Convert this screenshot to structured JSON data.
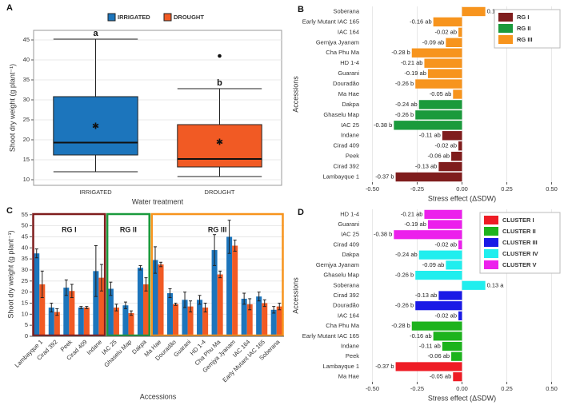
{
  "chart_data": [
    {
      "type": "box",
      "panel": "A",
      "xlabel": "Water treatment",
      "ylabel": "Shoot dry weight (g plant⁻¹)",
      "categories": [
        "IRRIGATED",
        "DROUGHT"
      ],
      "legend": "top",
      "grid": true,
      "ylim": [
        8.6,
        47.4
      ],
      "yticks": [
        10,
        15,
        20,
        25,
        30,
        35,
        40,
        45
      ],
      "series": [
        {
          "name": "IRRIGATED",
          "color": "#1c75bc",
          "min": 12,
          "q1": 16.2,
          "median": 19.3,
          "q3": 30.8,
          "max": 45.2,
          "mean": 23.5,
          "outliers": [],
          "letter": "a"
        },
        {
          "name": "DROUGHT",
          "color": "#f15a24",
          "min": 10.8,
          "q1": 13.2,
          "median": 15.2,
          "q3": 23.8,
          "max": 32.8,
          "mean": 19.5,
          "outliers": [
            41
          ],
          "letter": "b"
        }
      ]
    },
    {
      "type": "hbar",
      "panel": "B",
      "xlabel": "Stress effect (ΔSDW)",
      "ylabel": "Accessions",
      "legend": "top-right",
      "grid": true,
      "categories": [
        "Soberana",
        "Early Mutant IAC 165",
        "IAC 164",
        "Gemjya Jyanam",
        "Cha Phu Ma",
        "HD 1-4",
        "Guarani",
        "Douradão",
        "Ma  Hae",
        "Dakpa",
        "Ghaselu Map",
        "IAC 25",
        "Indane",
        "Cirad 409",
        "Peek",
        "Cirad 392",
        "Lambayque 1"
      ],
      "xlim": [
        -0.56,
        0.56
      ],
      "xticks": [
        {
          "value": -0.5,
          "label": "-0.50"
        },
        -0.25,
        {
          "value": 0,
          "label": "0.00"
        },
        0.25,
        {
          "value": 0.5,
          "label": "0.50"
        }
      ],
      "series": [
        {
          "name": "RG I",
          "color": "#7f1d1d",
          "values": [
            null,
            null,
            null,
            null,
            null,
            null,
            null,
            null,
            null,
            null,
            null,
            null,
            -0.11,
            -0.02,
            -0.06,
            -0.13,
            -0.37
          ],
          "value_labels": [
            null,
            null,
            null,
            null,
            null,
            null,
            null,
            null,
            null,
            null,
            null,
            null,
            "-0.11 ab",
            "-0.02 ab",
            "-0.06 ab",
            "-0.13 ab",
            "-0.37 b"
          ]
        },
        {
          "name": "RG II",
          "color": "#1a9a3c",
          "values": [
            null,
            null,
            null,
            null,
            null,
            null,
            null,
            null,
            null,
            -0.24,
            -0.26,
            -0.38,
            null,
            null,
            null,
            null,
            null
          ],
          "value_labels": [
            null,
            null,
            null,
            null,
            null,
            null,
            null,
            null,
            null,
            "-0.24 ab",
            "-0.26 b",
            "-0.38 b",
            null,
            null,
            null,
            null,
            null
          ]
        },
        {
          "name": "RG III",
          "color": "#f7941d",
          "values": [
            0.13,
            -0.16,
            -0.02,
            -0.09,
            -0.28,
            -0.21,
            -0.19,
            -0.26,
            -0.05,
            null,
            null,
            null,
            null,
            null,
            null,
            null,
            null
          ],
          "value_labels": [
            "0.13 a",
            "-0.16 ab",
            "-0.02 ab",
            "-0.09 ab",
            "-0.28 b",
            "-0.21 ab",
            "-0.19 ab",
            "-0.26 b",
            "-0.05 ab",
            null,
            null,
            null,
            null,
            null,
            null,
            null,
            null
          ]
        }
      ]
    },
    {
      "type": "grouped_bar",
      "panel": "C",
      "xlabel": "Accessions",
      "ylabel": "Shoot dry weight (g plant⁻¹)",
      "grid": true,
      "categories": [
        "Lambayque 1",
        "Cirad 392",
        "Peek",
        "Cirad 409",
        "Indane",
        "IAC 25",
        "Ghaselu Map",
        "Dakpa",
        "Ma  Hae",
        "Douradão",
        "Guarani",
        "HD 1-4",
        "Cha Phu Ma",
        "Gemjya Jyanam",
        "IAC 164",
        "Early Mutant IAC 165",
        "Soberana"
      ],
      "ylim": [
        0,
        56
      ],
      "yticks": [
        0,
        5,
        10,
        15,
        20,
        25,
        30,
        35,
        40,
        45,
        50,
        55
      ],
      "series": [
        {
          "name": "IRRIGATED",
          "color": "#1c75bc",
          "values": [
            37.5,
            13,
            22,
            13,
            29.5,
            21.5,
            14,
            31,
            34.5,
            19.5,
            16.5,
            16.5,
            39,
            45,
            17,
            18,
            12
          ],
          "errors": [
            2,
            2,
            3.5,
            0.5,
            11.5,
            3,
            1.5,
            1,
            6,
            2,
            3.5,
            2,
            7,
            7.5,
            2.5,
            2,
            1.5
          ]
        },
        {
          "name": "DROUGHT",
          "color": "#f15a24",
          "values": [
            23.5,
            11,
            20.5,
            13,
            26.5,
            13,
            10.5,
            23.5,
            32.5,
            14.5,
            13.5,
            13,
            28,
            41,
            14.5,
            15,
            13.5
          ],
          "errors": [
            6,
            1.5,
            3,
            0.5,
            6,
            1.5,
            1,
            3,
            1,
            0.5,
            2.5,
            2,
            1.5,
            2.5,
            2.5,
            1.5,
            1.5
          ]
        }
      ],
      "groups": [
        {
          "name": "RG I",
          "color": "#7f1d1d",
          "members": [
            "Lambayque 1",
            "Cirad 392",
            "Peek",
            "Cirad 409",
            "Indane"
          ]
        },
        {
          "name": "RG II",
          "color": "#1a9a3c",
          "members": [
            "IAC 25",
            "Ghaselu Map",
            "Dakpa"
          ]
        },
        {
          "name": "RG III",
          "color": "#f7941d",
          "members": [
            "Ma  Hae",
            "Douradão",
            "Guarani",
            "HD 1-4",
            "Cha Phu Ma",
            "Gemjya Jyanam",
            "IAC 164",
            "Early Mutant IAC 165",
            "Soberana"
          ]
        }
      ]
    },
    {
      "type": "hbar",
      "panel": "D",
      "xlabel": "Stress effect (ΔSDW)",
      "ylabel": "Accessions",
      "legend": "top-right",
      "grid": true,
      "categories": [
        "HD 1-4",
        "Guarani",
        "IAC 25",
        "Cirad 409",
        "Dakpa",
        "Gemjya Jyanam",
        "Ghaselu Map",
        "Soberana",
        "Cirad 392",
        "Douradão",
        "IAC 164",
        "Cha Phu Ma",
        "Early Mutant IAC 165",
        "Indane",
        "Peek",
        "Lambayque 1",
        "Ma Hae"
      ],
      "xlim": [
        -0.56,
        0.56
      ],
      "xticks": [
        {
          "value": -0.5,
          "label": "-0.50"
        },
        -0.25,
        {
          "value": 0,
          "label": "0.00"
        },
        0.25,
        {
          "value": 0.5,
          "label": "0.50"
        }
      ],
      "series": [
        {
          "name": "CLUSTER I",
          "color": "#ee1c25",
          "values": [
            null,
            null,
            null,
            null,
            null,
            null,
            null,
            null,
            null,
            null,
            null,
            null,
            null,
            null,
            null,
            -0.37,
            -0.05
          ],
          "value_labels": [
            null,
            null,
            null,
            null,
            null,
            null,
            null,
            null,
            null,
            null,
            null,
            null,
            null,
            null,
            null,
            "-0.37 b",
            "-0.05 ab"
          ]
        },
        {
          "name": "CLUSTER II",
          "color": "#1db31d",
          "values": [
            null,
            null,
            null,
            null,
            null,
            null,
            null,
            null,
            null,
            null,
            null,
            -0.28,
            -0.16,
            -0.11,
            -0.06,
            null,
            null
          ],
          "value_labels": [
            null,
            null,
            null,
            null,
            null,
            null,
            null,
            null,
            null,
            null,
            null,
            "-0.28 b",
            "-0.16 ab",
            "-0.11 ab",
            "-0.06 ab",
            null,
            null
          ]
        },
        {
          "name": "CLUSTER III",
          "color": "#1a1ae6",
          "values": [
            null,
            null,
            null,
            null,
            null,
            null,
            null,
            null,
            -0.13,
            -0.26,
            -0.02,
            null,
            null,
            null,
            null,
            null,
            null
          ],
          "value_labels": [
            null,
            null,
            null,
            null,
            null,
            null,
            null,
            null,
            "-0.13 ab",
            "-0.26 b",
            "-0.02 ab",
            null,
            null,
            null,
            null,
            null,
            null
          ]
        },
        {
          "name": "CLUSTER IV",
          "color": "#20eeee",
          "values": [
            null,
            null,
            null,
            null,
            -0.24,
            -0.09,
            -0.26,
            0.13,
            null,
            null,
            null,
            null,
            null,
            null,
            null,
            null,
            null
          ],
          "value_labels": [
            null,
            null,
            null,
            null,
            "-0.24 ab",
            "-0.09 ab",
            "-0.26 b",
            "0.13 a",
            null,
            null,
            null,
            null,
            null,
            null,
            null,
            null,
            null
          ]
        },
        {
          "name": "CLUSTER V",
          "color": "#ec20ec",
          "values": [
            -0.21,
            -0.19,
            -0.38,
            -0.02,
            null,
            null,
            null,
            null,
            null,
            null,
            null,
            null,
            null,
            null,
            null,
            null,
            null
          ],
          "value_labels": [
            "-0.21 ab",
            "-0.19 ab",
            "-0.38 b",
            "-0.02 ab",
            null,
            null,
            null,
            null,
            null,
            null,
            null,
            null,
            null,
            null,
            null,
            null,
            null
          ]
        }
      ]
    }
  ]
}
